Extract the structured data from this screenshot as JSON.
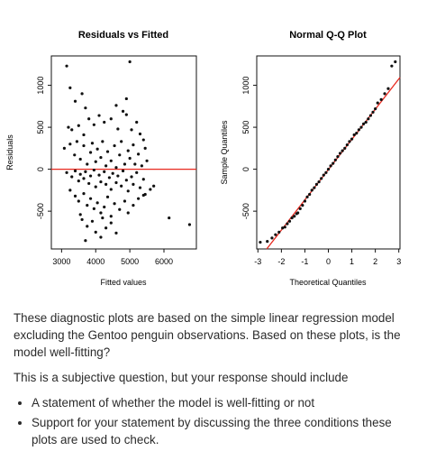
{
  "chart_data": [
    {
      "type": "scatter",
      "title": "Residuals vs Fitted",
      "xlabel": "Fitted values",
      "ylabel": "Residuals",
      "xticks": [
        "3000",
        "4000",
        "5000",
        "6000"
      ],
      "yticks": [
        "-500",
        "0",
        "500",
        "1000"
      ],
      "xlim": [
        2700,
        6950
      ],
      "ylim": [
        -950,
        1350
      ],
      "reference_line": {
        "y": 0,
        "color": "#e8281e"
      },
      "points": [
        [
          3150,
          1230
        ],
        [
          5000,
          1280
        ],
        [
          3250,
          970
        ],
        [
          4900,
          840
        ],
        [
          3600,
          900
        ],
        [
          3700,
          730
        ],
        [
          3400,
          810
        ],
        [
          4600,
          760
        ],
        [
          4800,
          690
        ],
        [
          3200,
          500
        ],
        [
          3300,
          470
        ],
        [
          3500,
          520
        ],
        [
          3650,
          410
        ],
        [
          3800,
          600
        ],
        [
          3950,
          530
        ],
        [
          4100,
          640
        ],
        [
          4250,
          560
        ],
        [
          4450,
          600
        ],
        [
          4650,
          480
        ],
        [
          4900,
          650
        ],
        [
          5050,
          470
        ],
        [
          5200,
          560
        ],
        [
          5300,
          420
        ],
        [
          5400,
          350
        ],
        [
          3080,
          250
        ],
        [
          3250,
          300
        ],
        [
          3380,
          170
        ],
        [
          3450,
          330
        ],
        [
          3550,
          120
        ],
        [
          3650,
          280
        ],
        [
          3750,
          60
        ],
        [
          3850,
          200
        ],
        [
          3900,
          310
        ],
        [
          4000,
          90
        ],
        [
          4050,
          240
        ],
        [
          4150,
          140
        ],
        [
          4200,
          330
        ],
        [
          4300,
          40
        ],
        [
          4350,
          210
        ],
        [
          4450,
          100
        ],
        [
          4550,
          280
        ],
        [
          4600,
          20
        ],
        [
          4700,
          170
        ],
        [
          4750,
          330
        ],
        [
          4850,
          60
        ],
        [
          4950,
          220
        ],
        [
          5000,
          130
        ],
        [
          5100,
          290
        ],
        [
          5150,
          60
        ],
        [
          5250,
          180
        ],
        [
          5350,
          40
        ],
        [
          5450,
          250
        ],
        [
          5500,
          100
        ],
        [
          3150,
          -40
        ],
        [
          3300,
          -90
        ],
        [
          3400,
          -20
        ],
        [
          3500,
          -140
        ],
        [
          3550,
          -60
        ],
        [
          3650,
          -110
        ],
        [
          3700,
          -30
        ],
        [
          3800,
          -170
        ],
        [
          3850,
          -80
        ],
        [
          3950,
          -10
        ],
        [
          4000,
          -210
        ],
        [
          4100,
          -70
        ],
        [
          4150,
          -150
        ],
        [
          4250,
          -30
        ],
        [
          4300,
          -180
        ],
        [
          4400,
          -100
        ],
        [
          4450,
          -240
        ],
        [
          4500,
          -50
        ],
        [
          4600,
          -160
        ],
        [
          4650,
          -80
        ],
        [
          4750,
          -200
        ],
        [
          4800,
          -20
        ],
        [
          4900,
          -130
        ],
        [
          4950,
          -260
        ],
        [
          5050,
          -90
        ],
        [
          5100,
          -180
        ],
        [
          5200,
          -40
        ],
        [
          5300,
          -220
        ],
        [
          5400,
          -120
        ],
        [
          5450,
          -300
        ],
        [
          5600,
          -240
        ],
        [
          5700,
          -200
        ],
        [
          3250,
          -250
        ],
        [
          3400,
          -320
        ],
        [
          3500,
          -380
        ],
        [
          3650,
          -290
        ],
        [
          3750,
          -430
        ],
        [
          3850,
          -350
        ],
        [
          3950,
          -470
        ],
        [
          4050,
          -400
        ],
        [
          4150,
          -520
        ],
        [
          4250,
          -450
        ],
        [
          4350,
          -330
        ],
        [
          4450,
          -560
        ],
        [
          4550,
          -410
        ],
        [
          4700,
          -480
        ],
        [
          4850,
          -380
        ],
        [
          4950,
          -520
        ],
        [
          5100,
          -430
        ],
        [
          5250,
          -350
        ],
        [
          5400,
          -310
        ],
        [
          3600,
          -600
        ],
        [
          3750,
          -680
        ],
        [
          3900,
          -620
        ],
        [
          4000,
          -750
        ],
        [
          4150,
          -810
        ],
        [
          4300,
          -700
        ],
        [
          4450,
          -640
        ],
        [
          4600,
          -760
        ],
        [
          3700,
          -850
        ],
        [
          3550,
          -540
        ],
        [
          4200,
          -580
        ],
        [
          6150,
          -580
        ],
        [
          6750,
          -660
        ]
      ]
    },
    {
      "type": "scatter",
      "title": "Normal Q-Q Plot",
      "xlabel": "Theoretical Quantiles",
      "ylabel": "Sample Quantiles",
      "xticks": [
        "-3",
        "-2",
        "-1",
        "0",
        "1",
        "2",
        "3"
      ],
      "yticks": [
        "-500",
        "0",
        "500",
        "1000"
      ],
      "xlim": [
        -3.05,
        3.05
      ],
      "ylim": [
        -950,
        1350
      ],
      "reference_line": {
        "intercept": -5,
        "slope": 360,
        "color": "#e8281e"
      },
      "points": [
        [
          -2.9,
          -870
        ],
        [
          -2.6,
          -860
        ],
        [
          -2.4,
          -820
        ],
        [
          -2.25,
          -780
        ],
        [
          -2.1,
          -750
        ],
        [
          -1.95,
          -700
        ],
        [
          -1.85,
          -690
        ],
        [
          -1.75,
          -650
        ],
        [
          -1.65,
          -620
        ],
        [
          -1.55,
          -580
        ],
        [
          -1.45,
          -560
        ],
        [
          -1.35,
          -530
        ],
        [
          -1.3,
          -520
        ],
        [
          -1.2,
          -470
        ],
        [
          -1.1,
          -430
        ],
        [
          -1.0,
          -380
        ],
        [
          -0.9,
          -330
        ],
        [
          -0.8,
          -300
        ],
        [
          -0.7,
          -250
        ],
        [
          -0.6,
          -220
        ],
        [
          -0.5,
          -180
        ],
        [
          -0.4,
          -150
        ],
        [
          -0.3,
          -110
        ],
        [
          -0.2,
          -70
        ],
        [
          -0.1,
          -40
        ],
        [
          0.0,
          0
        ],
        [
          0.1,
          40
        ],
        [
          0.2,
          70
        ],
        [
          0.3,
          110
        ],
        [
          0.4,
          150
        ],
        [
          0.5,
          190
        ],
        [
          0.6,
          220
        ],
        [
          0.7,
          250
        ],
        [
          0.8,
          290
        ],
        [
          0.9,
          330
        ],
        [
          1.0,
          360
        ],
        [
          1.1,
          410
        ],
        [
          1.2,
          430
        ],
        [
          1.3,
          470
        ],
        [
          1.4,
          500
        ],
        [
          1.5,
          540
        ],
        [
          1.6,
          560
        ],
        [
          1.7,
          600
        ],
        [
          1.8,
          640
        ],
        [
          1.9,
          680
        ],
        [
          2.0,
          720
        ],
        [
          2.1,
          790
        ],
        [
          2.25,
          830
        ],
        [
          2.4,
          900
        ],
        [
          2.55,
          960
        ],
        [
          2.7,
          1230
        ],
        [
          2.85,
          1280
        ]
      ]
    }
  ],
  "question": {
    "paragraph1": "These diagnostic plots are based on the simple linear regression model excluding the Gentoo penguin observations. Based on these plots, is the model well-fitting?",
    "paragraph2": "This is a subjective question, but your response should include",
    "bullets": [
      "A statement of whether the model is well-fitting or not",
      "Support for your statement by discussing the three conditions these plots are used to check."
    ]
  }
}
